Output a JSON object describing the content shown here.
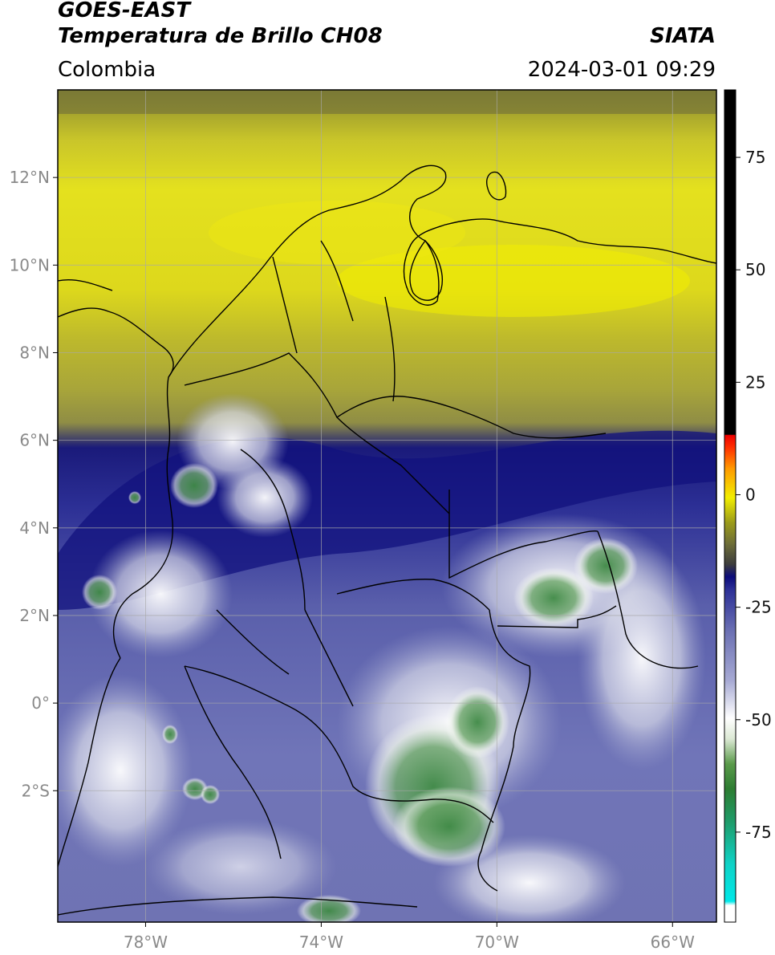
{
  "header": {
    "line1": "GOES-EAST",
    "line2": "Temperatura de Brillo CH08",
    "brand": "SIATA",
    "region": "Colombia",
    "timestamp": "2024-03-01 09:29"
  },
  "map": {
    "lon_range": [
      -80,
      -65
    ],
    "lat_range": [
      -5,
      14
    ],
    "lon_ticks": [
      {
        "value": -78,
        "label": "78°W"
      },
      {
        "value": -74,
        "label": "74°W"
      },
      {
        "value": -70,
        "label": "70°W"
      },
      {
        "value": -66,
        "label": "66°W"
      }
    ],
    "lat_ticks": [
      {
        "value": 12,
        "label": "12°N"
      },
      {
        "value": 10,
        "label": "10°N"
      },
      {
        "value": 8,
        "label": "8°N"
      },
      {
        "value": 6,
        "label": "6°N"
      },
      {
        "value": 4,
        "label": "4°N"
      },
      {
        "value": 2,
        "label": "2°N"
      },
      {
        "value": 0,
        "label": "0°"
      },
      {
        "value": -2,
        "label": "2°S"
      }
    ],
    "grid": true
  },
  "colorbar": {
    "range": [
      -95,
      90
    ],
    "ticks": [
      {
        "value": 75,
        "label": "75"
      },
      {
        "value": 50,
        "label": "50"
      },
      {
        "value": 25,
        "label": "25"
      },
      {
        "value": 0,
        "label": "0"
      },
      {
        "value": -25,
        "label": "-25"
      },
      {
        "value": -50,
        "label": "-50"
      },
      {
        "value": -75,
        "label": "-75"
      }
    ]
  }
}
